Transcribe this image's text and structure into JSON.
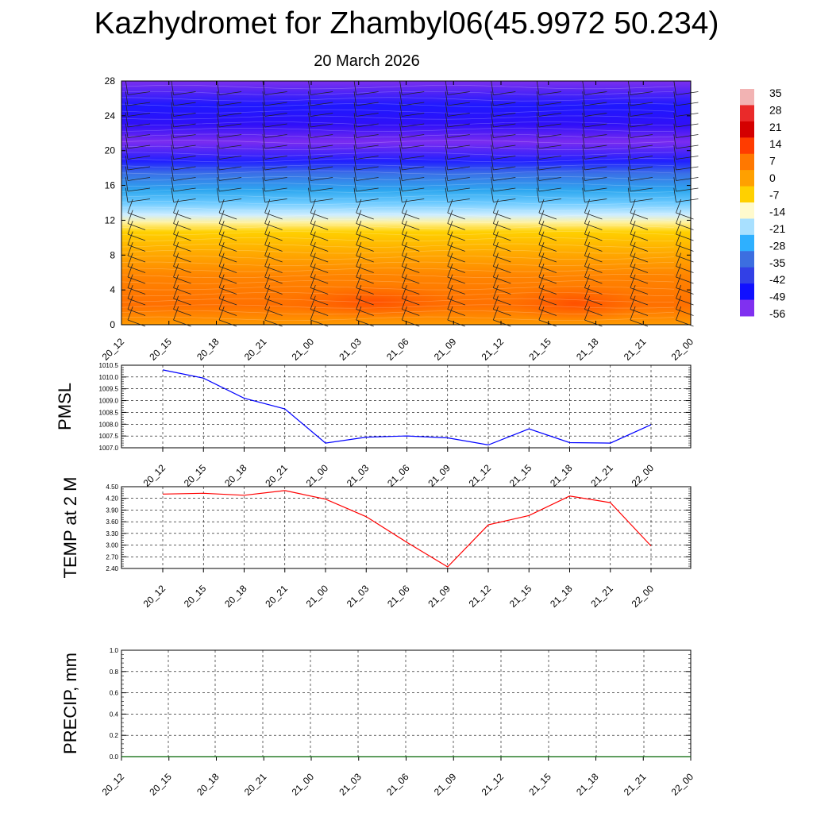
{
  "title": "Kazhydromet for Zhambyl06(45.9972 50.234)",
  "subtitle": "20 March 2026",
  "colors": {
    "pmsl_line": "#0000ff",
    "temp_line": "#ff0000",
    "precip_line": "#006400"
  },
  "chart_data": [
    {
      "type": "heatmap",
      "name": "cross-section",
      "x_ticks": [
        "20_12",
        "20_15",
        "20_18",
        "20_21",
        "21_00",
        "21_03",
        "21_06",
        "21_09",
        "21_12",
        "21_15",
        "21_18",
        "21_21",
        "22_00"
      ],
      "y_ticks": [
        "0",
        "4",
        "8",
        "12",
        "16",
        "20",
        "24",
        "28"
      ],
      "ylim": [
        0,
        28
      ],
      "colorbar": {
        "labels": [
          "35",
          "28",
          "21",
          "14",
          "7",
          "0",
          "-7",
          "-14",
          "-21",
          "-28",
          "-35",
          "-42",
          "-49",
          "-56"
        ],
        "colors": [
          "#f2b3b3",
          "#ea2a2a",
          "#d40000",
          "#ff3c00",
          "#ff7800",
          "#ffa000",
          "#ffd000",
          "#fffacd",
          "#a8e0ff",
          "#2eb0ff",
          "#3c6ee0",
          "#3240e6",
          "#1010ff",
          "#8030f0"
        ]
      },
      "wind_barbs": true
    },
    {
      "type": "line",
      "name": "pmsl",
      "ylabel": "PMSL",
      "categories": [
        "20_12",
        "20_15",
        "20_18",
        "20_21",
        "21_00",
        "21_03",
        "21_06",
        "21_09",
        "21_12",
        "21_15",
        "21_18",
        "21_21",
        "22_00"
      ],
      "values": [
        1010.3,
        1009.95,
        1009.1,
        1008.65,
        1007.2,
        1007.45,
        1007.5,
        1007.42,
        1007.12,
        1007.8,
        1007.22,
        1007.2,
        1007.98
      ],
      "ylim": [
        1007.0,
        1010.5
      ],
      "y_ticks": [
        "1007.0",
        "1007.5",
        "1008.0",
        "1008.5",
        "1009.0",
        "1009.5",
        "1010.0",
        "1010.5"
      ],
      "grid": true
    },
    {
      "type": "line",
      "name": "temp",
      "ylabel": "TEMP at 2 M",
      "categories": [
        "20_12",
        "20_15",
        "20_18",
        "20_21",
        "21_00",
        "21_03",
        "21_06",
        "21_09",
        "21_12",
        "21_15",
        "21_18",
        "21_21",
        "22_00"
      ],
      "values": [
        4.31,
        4.33,
        4.28,
        4.4,
        4.18,
        3.73,
        3.07,
        2.44,
        3.52,
        3.76,
        4.26,
        4.09,
        2.98
      ],
      "ylim": [
        2.4,
        4.5
      ],
      "y_ticks": [
        "2.40",
        "2.70",
        "3.00",
        "3.30",
        "3.60",
        "3.90",
        "4.20",
        "4.50"
      ],
      "grid": true
    },
    {
      "type": "line",
      "name": "precip",
      "ylabel": "PRECIP, mm",
      "categories": [
        "20_12",
        "20_15",
        "20_18",
        "20_21",
        "21_00",
        "21_03",
        "21_06",
        "21_09",
        "21_12",
        "21_15",
        "21_18",
        "21_21",
        "22_00"
      ],
      "values": [
        0,
        0,
        0,
        0,
        0,
        0,
        0,
        0,
        0,
        0,
        0,
        0,
        0
      ],
      "ylim": [
        0,
        1.0
      ],
      "y_ticks": [
        "0.0",
        "0.2",
        "0.4",
        "0.6",
        "0.8",
        "1.0"
      ],
      "grid": true
    }
  ]
}
